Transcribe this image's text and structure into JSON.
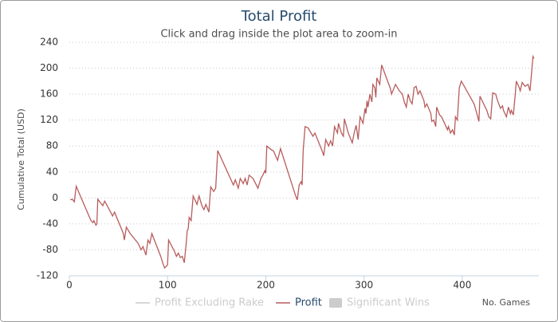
{
  "chart_data": {
    "type": "line",
    "title": "Total Profit",
    "subtitle": "Click and drag inside the plot area to zoom-in",
    "y_label": "Cumulative Total (USD)",
    "x_label": "No. Games",
    "xlim": [
      0,
      478
    ],
    "xticks": [
      0,
      100,
      200,
      300,
      400
    ],
    "ylim": [
      -120,
      240
    ],
    "yticks": [
      -120,
      -80,
      -40,
      0,
      40,
      80,
      120,
      160,
      200,
      240
    ],
    "grid": true,
    "legend": "bottom",
    "series": [
      {
        "name": "Profit Excluding Rake",
        "color": "#cccccc",
        "visible": false
      },
      {
        "name": "Profit",
        "color": "#b85c5c",
        "visible": true,
        "x": [
          1,
          3,
          5,
          7,
          22,
          24,
          25,
          27,
          28,
          29,
          34,
          36,
          42,
          44,
          46,
          55,
          56,
          58,
          62,
          70,
          73,
          75,
          78,
          80,
          82,
          84,
          93,
          95,
          97,
          99,
          100,
          101,
          107,
          109,
          111,
          113,
          115,
          117,
          119,
          120,
          121,
          122,
          124,
          126,
          130,
          132,
          135,
          137,
          139,
          142,
          144,
          147,
          149,
          151,
          167,
          169,
          172,
          174,
          177,
          179,
          181,
          183,
          187,
          192,
          195,
          197,
          199,
          200,
          201,
          205,
          208,
          212,
          215,
          230,
          232,
          234,
          236,
          237,
          238,
          240,
          243,
          248,
          250,
          258,
          259,
          261,
          264,
          266,
          268,
          270,
          273,
          274,
          277,
          279,
          280,
          284,
          288,
          290,
          292,
          294,
          296,
          299,
          301,
          302,
          303,
          304,
          306,
          308,
          309,
          311,
          312,
          313,
          316,
          318,
          327,
          328,
          332,
          336,
          339,
          341,
          343,
          345,
          347,
          349,
          351,
          353,
          355,
          357,
          361,
          362,
          364,
          368,
          369,
          371,
          373,
          374,
          377,
          379,
          382,
          385,
          386,
          388,
          390,
          392,
          393,
          395,
          397,
          399,
          401,
          412,
          414,
          417,
          418,
          425,
          427,
          429,
          431,
          434,
          436,
          439,
          441,
          442,
          445,
          447,
          449,
          450,
          452,
          454,
          455,
          458,
          459,
          461,
          464,
          467,
          469,
          472,
          473
        ],
        "values": [
          -3,
          -2,
          -6,
          18,
          -35,
          -38,
          -35,
          -42,
          -40,
          -2,
          -12,
          -5,
          -22,
          -28,
          -22,
          -55,
          -65,
          -45,
          -55,
          -70,
          -80,
          -75,
          -88,
          -65,
          -70,
          -55,
          -90,
          -100,
          -108,
          -105,
          -103,
          -65,
          -82,
          -90,
          -85,
          -92,
          -90,
          -100,
          -70,
          -50,
          -48,
          -30,
          -35,
          3,
          -10,
          3,
          -12,
          -18,
          -10,
          -22,
          17,
          10,
          15,
          73,
          20,
          28,
          15,
          30,
          22,
          30,
          20,
          35,
          30,
          15,
          30,
          35,
          42,
          38,
          80,
          75,
          72,
          58,
          76,
          5,
          -3,
          20,
          25,
          20,
          72,
          110,
          108,
          95,
          100,
          70,
          65,
          90,
          80,
          88,
          80,
          110,
          100,
          115,
          100,
          95,
          122,
          100,
          85,
          100,
          112,
          90,
          125,
          115,
          138,
          130,
          150,
          140,
          160,
          148,
          175,
          170,
          155,
          185,
          175,
          205,
          168,
          160,
          175,
          165,
          160,
          148,
          140,
          160,
          150,
          145,
          170,
          172,
          160,
          165,
          150,
          140,
          145,
          130,
          118,
          120,
          110,
          140,
          128,
          125,
          115,
          105,
          110,
          100,
          105,
          97,
          125,
          120,
          170,
          180,
          175,
          145,
          135,
          118,
          157,
          135,
          125,
          122,
          162,
          160,
          150,
          138,
          142,
          135,
          125,
          140,
          130,
          135,
          128,
          160,
          180,
          170,
          165,
          178,
          172,
          175,
          165,
          218,
          215
        ]
      },
      {
        "name": "Significant Wins",
        "color": "#cccccc",
        "visible": false
      }
    ]
  }
}
